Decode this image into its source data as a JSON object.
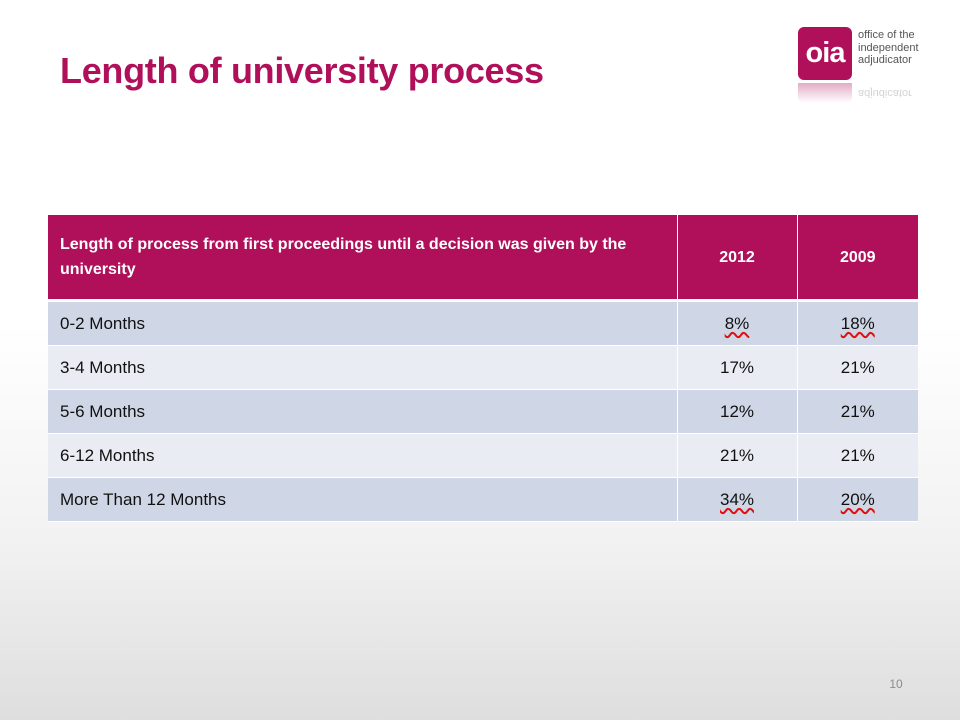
{
  "slide": {
    "title": "Length of university process",
    "page_number": "10"
  },
  "logo": {
    "mark": "oia",
    "lines": [
      "office of the",
      "independent",
      "adjudicator"
    ],
    "reflection_text": "adjudicator",
    "brand_color": "#b0105a"
  },
  "table": {
    "headers": [
      "Length of process from first proceedings until a decision was given by the university",
      "2012",
      "2009"
    ],
    "rows": [
      {
        "label": "0-2 Months",
        "v2012": "8%",
        "v2009": "18%",
        "flag2012": true,
        "flag2009": true
      },
      {
        "label": "3-4 Months",
        "v2012": "17%",
        "v2009": "21%",
        "flag2012": false,
        "flag2009": false
      },
      {
        "label": "5-6 Months",
        "v2012": "12%",
        "v2009": "21%",
        "flag2012": false,
        "flag2009": false
      },
      {
        "label": "6-12 Months",
        "v2012": "21%",
        "v2009": "21%",
        "flag2012": false,
        "flag2009": false
      },
      {
        "label": "More Than 12 Months",
        "v2012": "34%",
        "v2009": "20%",
        "flag2012": true,
        "flag2009": true
      }
    ],
    "header_color": "#b0105a",
    "row_color_odd": "#cfd6e6",
    "row_color_even": "#e9ecf3",
    "flag_underline_color": "#e01010"
  }
}
